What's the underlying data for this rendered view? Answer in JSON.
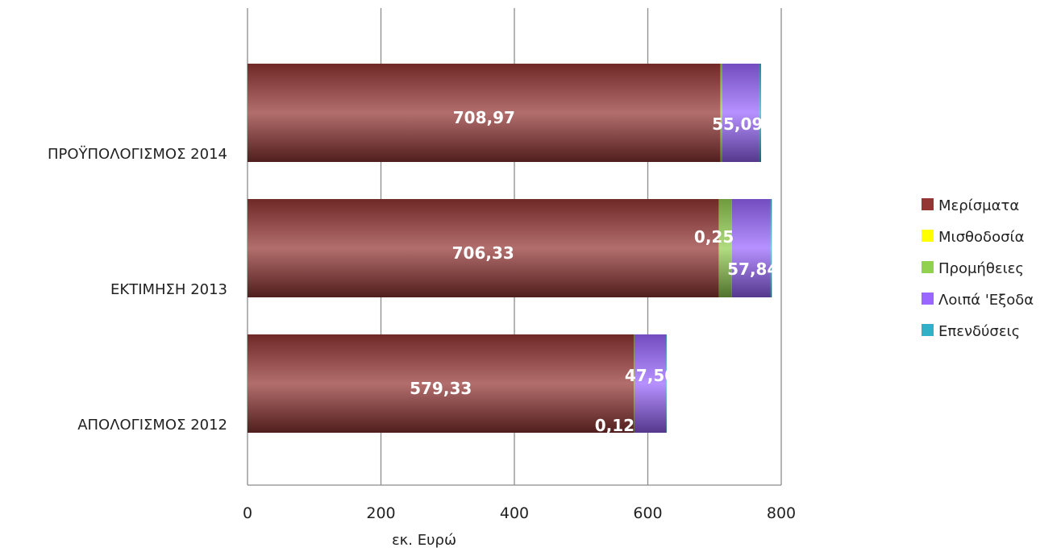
{
  "chart_data": {
    "type": "bar",
    "orientation": "horizontal",
    "stacked": true,
    "categories": [
      "ΑΠΟΛΟΓΙΣΜΟΣ 2012",
      "ΕΚΤΙΜΗΣΗ 2013",
      "ΠΡΟΫΠΟΛΟΓΙΣΜΟΣ 2014"
    ],
    "xlabel": "εκ. Ευρώ",
    "xlim": [
      0,
      800
    ],
    "xticks": [
      0,
      200,
      400,
      600,
      800
    ],
    "grid": true,
    "legend_position": "right",
    "series": [
      {
        "name": "Μερίσματα",
        "color": "#943634",
        "values": [
          579.33,
          706.33,
          708.97
        ],
        "labels": [
          "579,33",
          "706,33",
          "708,97"
        ]
      },
      {
        "name": "Μισθοδοσία",
        "color": "#ffff00",
        "values": [
          0.12,
          0.25,
          0.25
        ],
        "labels": [
          "0,12",
          "0,25",
          ""
        ]
      },
      {
        "name": "Προμήθειες",
        "color": "#92d050",
        "values": [
          0.5,
          19.5,
          2.5
        ],
        "labels": [
          "",
          "",
          ""
        ]
      },
      {
        "name": "Λοιπά 'Εξοδα",
        "color": "#9966ff",
        "values": [
          47.5,
          57.84,
          55.09
        ],
        "labels": [
          "47,50",
          "57,84",
          "55,09"
        ]
      },
      {
        "name": "Επενδύσεις",
        "color": "#31b0c8",
        "values": [
          0.5,
          2.0,
          3.0
        ],
        "labels": [
          "",
          "",
          ""
        ]
      }
    ]
  }
}
